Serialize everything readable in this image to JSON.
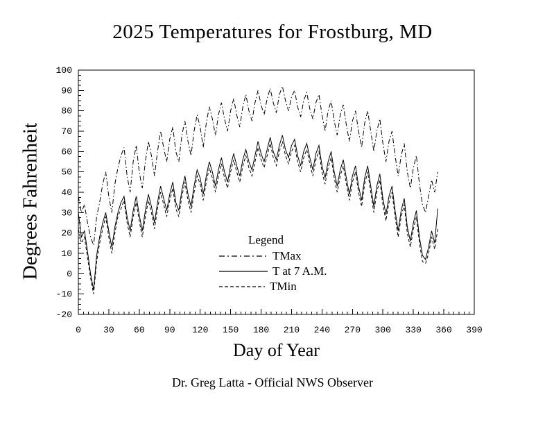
{
  "title": "2025 Temperatures for Frostburg, MD",
  "y_axis_label": "Degrees Fahrenheit",
  "x_axis_label": "Day of Year",
  "footer": "Dr. Greg Latta - Official NWS Observer",
  "legend": {
    "title": "Legend",
    "items": [
      {
        "label": "TMax",
        "line_style": "dashdot"
      },
      {
        "label": "T at 7 A.M.",
        "line_style": "solid"
      },
      {
        "label": "TMin",
        "line_style": "dashed"
      }
    ]
  },
  "colors": {
    "line": "#000000",
    "background": "#ffffff",
    "text": "#000000"
  },
  "chart_data": {
    "type": "line",
    "title": "2025 Temperatures for Frostburg, MD",
    "xlabel": "Day of Year",
    "ylabel": "Degrees Fahrenheit",
    "grid": false,
    "legend_position": "inside-bottom-center",
    "x_axis": {
      "min": 0,
      "max": 390,
      "major_tick": 30,
      "minor_tick": 5
    },
    "y_axis": {
      "min": -20,
      "max": 100,
      "major_tick": 10,
      "minor_tick": 2.5
    },
    "x_start": 0,
    "x_step": 3,
    "series": [
      {
        "name": "TMax",
        "style": "dashdot",
        "values": [
          38,
          30,
          34,
          25,
          18,
          14,
          28,
          35,
          44,
          50,
          38,
          30,
          44,
          52,
          58,
          62,
          48,
          40,
          55,
          63,
          50,
          42,
          55,
          65,
          58,
          48,
          60,
          70,
          62,
          55,
          66,
          72,
          60,
          55,
          68,
          75,
          65,
          58,
          70,
          78,
          72,
          62,
          74,
          82,
          76,
          68,
          78,
          84,
          76,
          70,
          80,
          86,
          78,
          72,
          82,
          88,
          80,
          75,
          84,
          90,
          83,
          78,
          86,
          91,
          84,
          79,
          88,
          92,
          85,
          80,
          87,
          90,
          82,
          77,
          85,
          89,
          81,
          76,
          84,
          88,
          78,
          70,
          80,
          85,
          75,
          68,
          78,
          83,
          73,
          65,
          75,
          80,
          70,
          62,
          74,
          80,
          70,
          60,
          70,
          76,
          64,
          55,
          65,
          70,
          58,
          48,
          58,
          64,
          50,
          42,
          52,
          58,
          44,
          34,
          30,
          38,
          46,
          40,
          50
        ]
      },
      {
        "name": "T at 7 A.M.",
        "style": "solid",
        "values": [
          30,
          18,
          21,
          11,
          0,
          -8,
          9,
          18,
          25,
          30,
          21,
          13,
          23,
          30,
          35,
          38,
          28,
          21,
          31,
          38,
          29,
          21,
          31,
          39,
          33,
          25,
          35,
          43,
          37,
          31,
          39,
          45,
          35,
          31,
          41,
          48,
          39,
          33,
          43,
          51,
          47,
          39,
          48,
          55,
          50,
          43,
          51,
          57,
          50,
          45,
          53,
          59,
          53,
          48,
          56,
          61,
          55,
          51,
          58,
          65,
          59,
          55,
          61,
          67,
          60,
          56,
          63,
          68,
          61,
          57,
          63,
          66,
          58,
          53,
          60,
          64,
          57,
          51,
          59,
          63,
          53,
          47,
          55,
          60,
          50,
          43,
          51,
          56,
          47,
          39,
          48,
          53,
          43,
          36,
          47,
          53,
          43,
          33,
          43,
          49,
          37,
          29,
          38,
          43,
          31,
          21,
          31,
          37,
          23,
          16,
          25,
          31,
          18,
          9,
          7,
          13,
          21,
          15,
          32
        ]
      },
      {
        "name": "TMin",
        "style": "dashed",
        "values": [
          22,
          15,
          18,
          8,
          -2,
          -10,
          6,
          15,
          22,
          28,
          18,
          10,
          20,
          28,
          32,
          36,
          25,
          18,
          28,
          35,
          26,
          18,
          28,
          36,
          30,
          22,
          32,
          40,
          34,
          28,
          36,
          42,
          32,
          28,
          38,
          45,
          36,
          30,
          40,
          48,
          44,
          36,
          45,
          52,
          47,
          40,
          48,
          54,
          47,
          42,
          50,
          56,
          50,
          45,
          53,
          58,
          52,
          48,
          55,
          62,
          56,
          52,
          58,
          64,
          57,
          53,
          60,
          65,
          58,
          54,
          60,
          63,
          55,
          50,
          57,
          61,
          54,
          48,
          56,
          60,
          50,
          44,
          52,
          57,
          47,
          40,
          48,
          53,
          44,
          36,
          45,
          50,
          40,
          33,
          44,
          50,
          40,
          30,
          40,
          46,
          34,
          26,
          35,
          40,
          28,
          18,
          28,
          34,
          20,
          13,
          22,
          28,
          15,
          6,
          5,
          10,
          18,
          12,
          22
        ]
      }
    ]
  }
}
